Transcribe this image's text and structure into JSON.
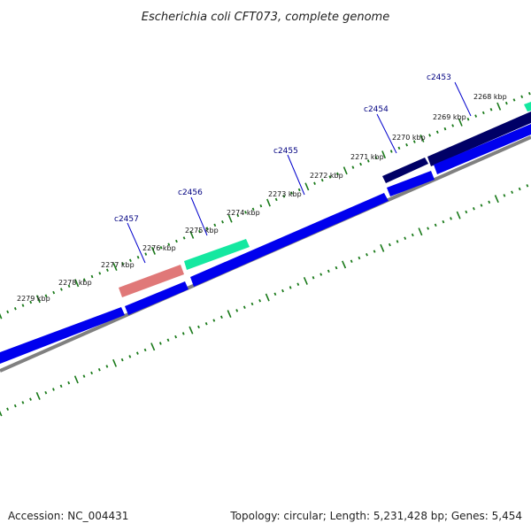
{
  "title": "Escherichia coli CFT073, complete genome",
  "footer": {
    "accession": "Accession: NC_004431",
    "summary": "Topology: circular; Length: 5,231,428 bp; Genes: 5,454"
  },
  "ticks": [
    "2268 kbp",
    "2269 kbp",
    "2270 kbp",
    "2271 kbp",
    "2272 kbp",
    "2273 kbp",
    "2274 kbp",
    "2275 kbp",
    "2276 kbp",
    "2277 kbp",
    "2278 kbp",
    "2279 kbp"
  ],
  "gene_labels": [
    "c2453",
    "c2454",
    "c2455",
    "c2456",
    "c2457"
  ],
  "colors": {
    "forward_gene": "#000066",
    "forward_gene_alt": "#14e8a0",
    "forward_gene_pink": "#e07878",
    "reverse_gene": "#0000ee",
    "backbone": "#808080",
    "tick": "#1a7a1a",
    "label_line": "#0000cc"
  }
}
